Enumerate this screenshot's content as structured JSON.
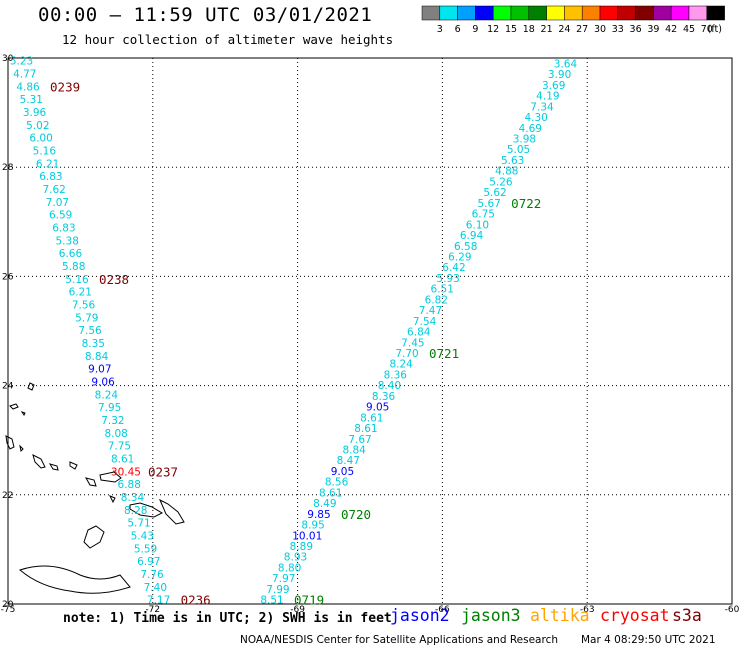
{
  "header": {
    "title": "00:00 – 11:59 UTC 03/01/2021",
    "subtitle": "12 hour collection of altimeter wave heights"
  },
  "legend": {
    "unit": "(ft)",
    "bins": [
      {
        "label": "3",
        "color": "#808080"
      },
      {
        "label": "6",
        "color": "#00e5ee"
      },
      {
        "label": "9",
        "color": "#00a0ff"
      },
      {
        "label": "12",
        "color": "#0000ff"
      },
      {
        "label": "15",
        "color": "#00ff00"
      },
      {
        "label": "18",
        "color": "#00c000"
      },
      {
        "label": "21",
        "color": "#008000"
      },
      {
        "label": "24",
        "color": "#ffff00"
      },
      {
        "label": "27",
        "color": "#ffc000"
      },
      {
        "label": "30",
        "color": "#ff8000"
      },
      {
        "label": "33",
        "color": "#ff0000"
      },
      {
        "label": "36",
        "color": "#c00000"
      },
      {
        "label": "39",
        "color": "#800000"
      },
      {
        "label": "42",
        "color": "#a000a0"
      },
      {
        "label": "45",
        "color": "#ff00ff"
      },
      {
        "label": "70",
        "color": "#ff99ee"
      },
      {
        "label": "",
        "color": "#000000"
      }
    ]
  },
  "axes": {
    "lon_ticks": [
      "-75",
      "-72",
      "-69",
      "-66",
      "-63",
      "-60"
    ],
    "lat_ticks": [
      "30",
      "28",
      "26",
      "24",
      "22",
      "20"
    ]
  },
  "tracks": [
    {
      "id": "track-a",
      "start": {
        "lon": -74.72,
        "lat": 29.95
      },
      "end": {
        "lon": -71.88,
        "lat": 20.08
      },
      "values": [
        "5.23",
        "4.77",
        "4.86",
        "5.31",
        "3.96",
        "5.02",
        "6.00",
        "5.16",
        "6.21",
        "6.83",
        "7.62",
        "7.07",
        "6.59",
        "6.83",
        "5.38",
        "6.66",
        "5.88",
        "5.16",
        "6.21",
        "7.56",
        "5.79",
        "7.56",
        "8.35",
        "8.84",
        "9.07",
        "9.06",
        "8.24",
        "7.95",
        "7.32",
        "8.08",
        "7.75",
        "8.61",
        "30.45",
        "6.88",
        "8.34",
        "8.28",
        "5.71",
        "5.43",
        "5.59",
        "6.97",
        "7.76",
        "7.40",
        "7.17"
      ],
      "colors": {
        "30.45": "#ff0000",
        "9.07": "#0000ff",
        "9.06": "#0000ff"
      },
      "times": [
        {
          "label": "0239",
          "index": 2,
          "color": "#800000"
        },
        {
          "label": "0238",
          "index": 17,
          "color": "#800000"
        },
        {
          "label": "0237",
          "index": 32,
          "color": "#800000"
        },
        {
          "label": "0236",
          "index": 42,
          "color": "#800000"
        }
      ]
    },
    {
      "id": "track-b",
      "start": {
        "lon": -63.45,
        "lat": 29.9
      },
      "end": {
        "lon": -69.53,
        "lat": 20.08
      },
      "values": [
        "3.64",
        "3.90",
        "3.69",
        "4.19",
        "7.34",
        "4.30",
        "4.69",
        "3.98",
        "5.05",
        "5.63",
        "4.88",
        "5.26",
        "5.62",
        "5.67",
        "6.75",
        "6.10",
        "6.94",
        "6.58",
        "6.29",
        "6.42",
        "5.93",
        "6.51",
        "6.82",
        "7.47",
        "7.54",
        "6.84",
        "7.45",
        "7.70",
        "8.24",
        "8.36",
        "8.40",
        "8.36",
        "9.05",
        "8.61",
        "8.61",
        "7.67",
        "8.84",
        "8.47",
        "9.05",
        "8.56",
        "8.61",
        "8.49",
        "9.85",
        "8.95",
        "10.01",
        "8.89",
        "8.93",
        "8.80",
        "7.97",
        "7.99",
        "8.51"
      ],
      "colors": {
        "9.05": "#0000ff",
        "9.85": "#0000ff",
        "10.01": "#0000ff"
      },
      "times": [
        {
          "label": "0722",
          "index": 13,
          "color": "#008000"
        },
        {
          "label": "0721",
          "index": 27,
          "color": "#008000"
        },
        {
          "label": "0720",
          "index": 42,
          "color": "#008000"
        },
        {
          "label": "0719",
          "index": 50,
          "color": "#008000"
        }
      ]
    }
  ],
  "footer": {
    "note": "note: 1) Time is in UTC; 2) SWH is in feet",
    "satellites": [
      {
        "name": "jason2",
        "color": "#0000ff"
      },
      {
        "name": "jason3",
        "color": "#008000"
      },
      {
        "name": "altika",
        "color": "#ffa500"
      },
      {
        "name": "cryosat",
        "color": "#ff0000"
      },
      {
        "name": "s3a",
        "color": "#800000"
      }
    ],
    "credit": "NOAA/NESDIS Center for Satellite Applications and Research",
    "generated": "Mar  4 08:29:50 UTC 2021"
  }
}
